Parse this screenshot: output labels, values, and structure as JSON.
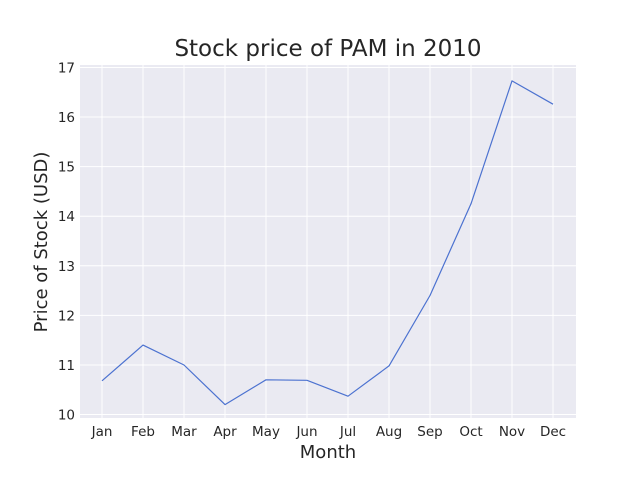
{
  "chart_data": {
    "type": "line",
    "title": "Stock price of PAM in 2010",
    "xlabel": "Month",
    "ylabel": "Price of Stock (USD)",
    "categories": [
      "Jan",
      "Feb",
      "Mar",
      "Apr",
      "May",
      "Jun",
      "Jul",
      "Aug",
      "Sep",
      "Oct",
      "Nov",
      "Dec"
    ],
    "series": [
      {
        "values": [
          10.68,
          11.4,
          11.0,
          10.2,
          10.7,
          10.69,
          10.37,
          10.98,
          12.4,
          14.25,
          16.73,
          16.26
        ]
      }
    ],
    "ylim": [
      9.93,
      17.05
    ],
    "yticks": [
      10,
      11,
      12,
      13,
      14,
      15,
      16,
      17
    ],
    "grid": true,
    "colors": {
      "line": "#4c72d0",
      "plot_background": "#eaeaf2",
      "grid": "#ffffff"
    }
  }
}
